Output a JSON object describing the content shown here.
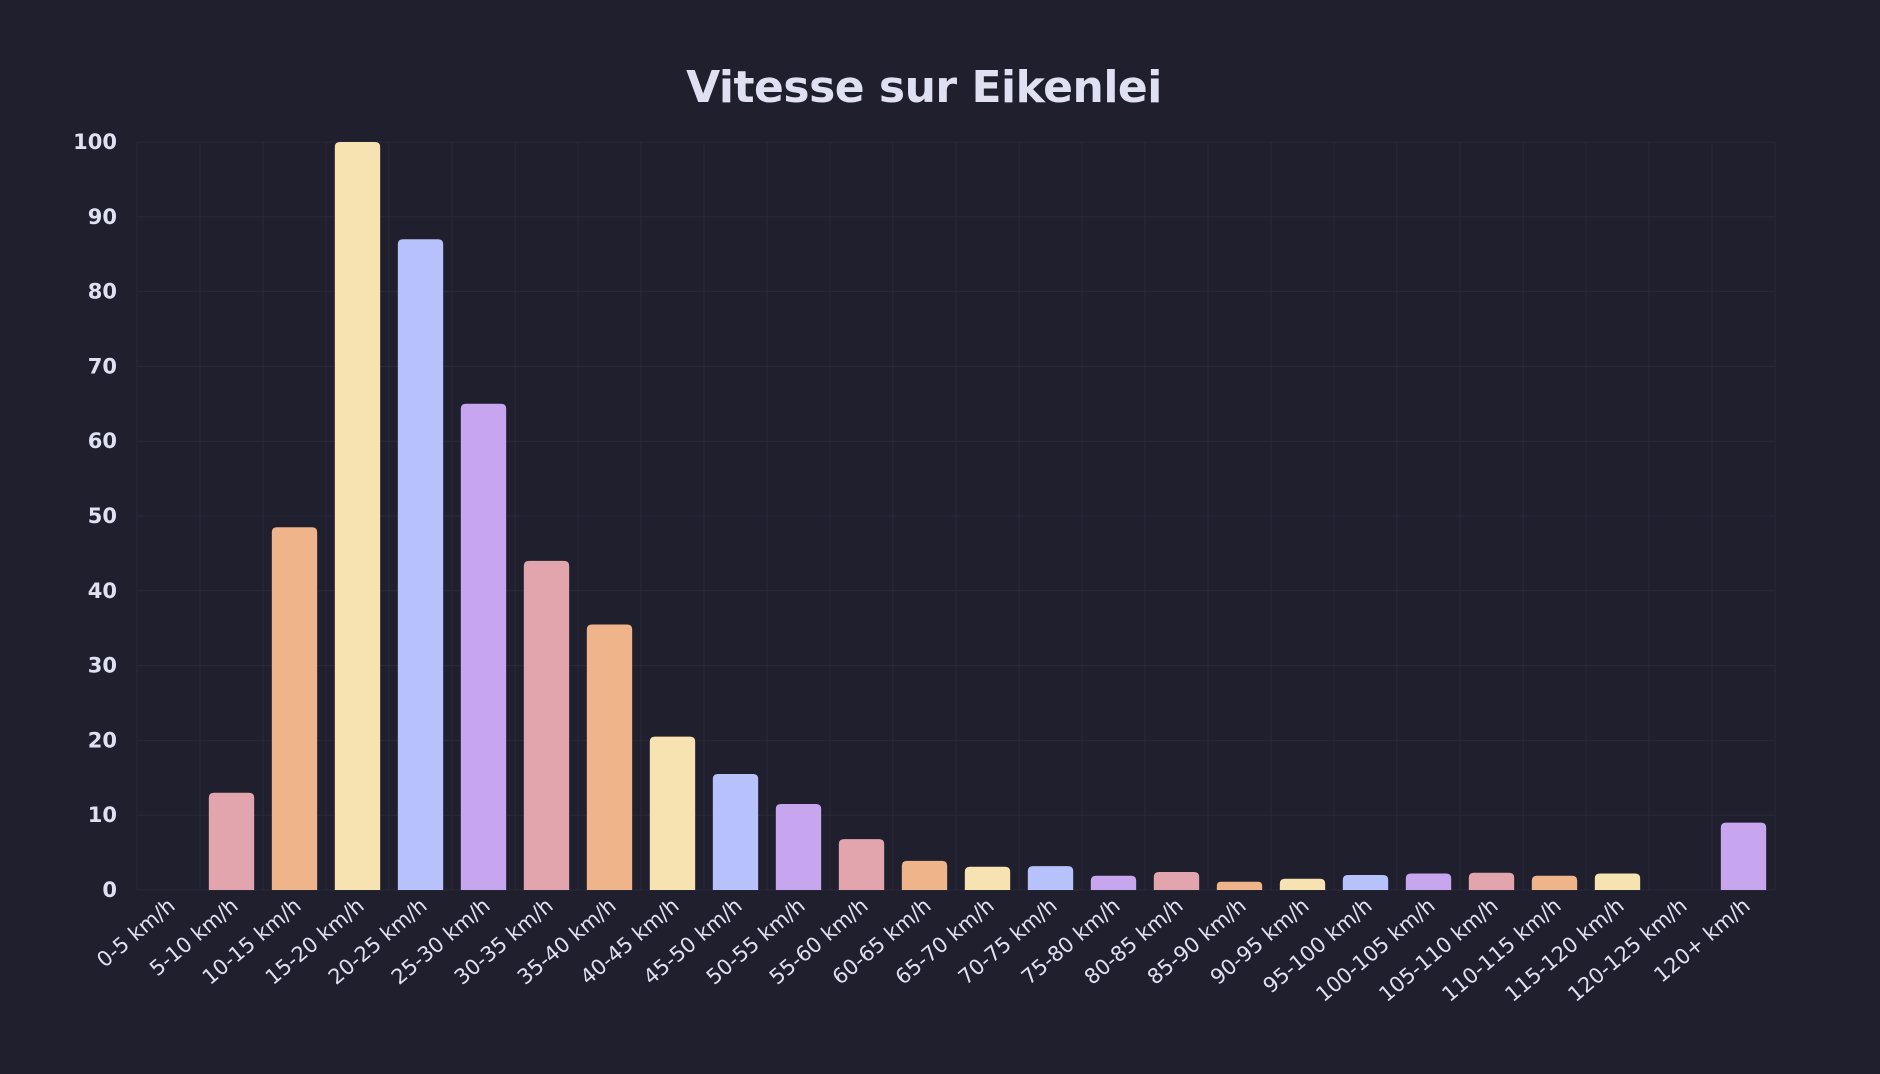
{
  "colors": {
    "background": "#1f1f2d",
    "text": "#dfe1f2",
    "grid": "#2a2a3a",
    "bar_palette": [
      "#c7a5ef",
      "#e2a4ad",
      "#efb489",
      "#f7e2b2",
      "#b7c1fb"
    ]
  },
  "chart_data": {
    "type": "bar",
    "title": "Vitesse sur Eikenlei",
    "xlabel": "",
    "ylabel": "",
    "ylim": [
      0,
      100
    ],
    "yticks": [
      0,
      10,
      20,
      30,
      40,
      50,
      60,
      70,
      80,
      90,
      100
    ],
    "grid": true,
    "legend": "none",
    "categories": [
      "0-5 km/h",
      "5-10 km/h",
      "10-15 km/h",
      "15-20 km/h",
      "20-25 km/h",
      "25-30 km/h",
      "30-35 km/h",
      "35-40 km/h",
      "40-45 km/h",
      "45-50 km/h",
      "50-55 km/h",
      "55-60 km/h",
      "60-65 km/h",
      "65-70 km/h",
      "70-75 km/h",
      "75-80 km/h",
      "80-85 km/h",
      "85-90 km/h",
      "90-95 km/h",
      "95-100 km/h",
      "100-105 km/h",
      "105-110 km/h",
      "110-115 km/h",
      "115-120 km/h",
      "120-125 km/h",
      "120+ km/h"
    ],
    "values": [
      0,
      13,
      48.5,
      100,
      87,
      65,
      44,
      35.5,
      20.5,
      15.5,
      11.5,
      6.8,
      3.9,
      3.1,
      3.2,
      1.9,
      2.4,
      1.1,
      1.5,
      2.0,
      2.2,
      2.3,
      1.9,
      2.2,
      0,
      9
    ]
  }
}
